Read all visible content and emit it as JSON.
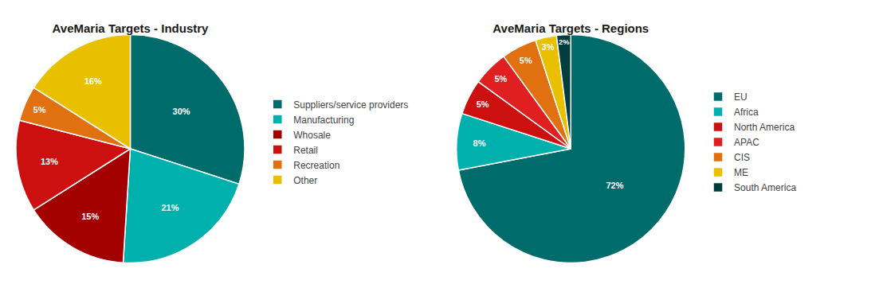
{
  "chart_data": [
    {
      "type": "pie",
      "title": "AveMaria Targets - Industry",
      "categories": [
        "Suppliers/service providers",
        "Manufacturing",
        "Whosale",
        "Retail",
        "Recreation",
        "Other"
      ],
      "values": [
        30,
        21,
        15,
        13,
        5,
        16
      ],
      "value_labels": [
        "30%",
        "21%",
        "15%",
        "13%",
        "5%",
        "16%"
      ],
      "colors": [
        "#006b6b",
        "#00b0ac",
        "#a30000",
        "#cc1010",
        "#e07010",
        "#e8c000"
      ],
      "data_labels": true,
      "legend": "right"
    },
    {
      "type": "pie",
      "title": "AveMaria Targets - Regions",
      "categories": [
        "EU",
        "Africa",
        "North America",
        "APAC",
        "CIS",
        "ME",
        "South America"
      ],
      "values": [
        72,
        8,
        5,
        5,
        5,
        3,
        2
      ],
      "value_labels": [
        "72%",
        "8%",
        "5%",
        "5%",
        "5%",
        "3%",
        "2%"
      ],
      "colors": [
        "#006b6b",
        "#00b0ac",
        "#cc1010",
        "#e02020",
        "#e07010",
        "#e8c000",
        "#003d3d"
      ],
      "data_labels": true,
      "legend": "right"
    }
  ]
}
